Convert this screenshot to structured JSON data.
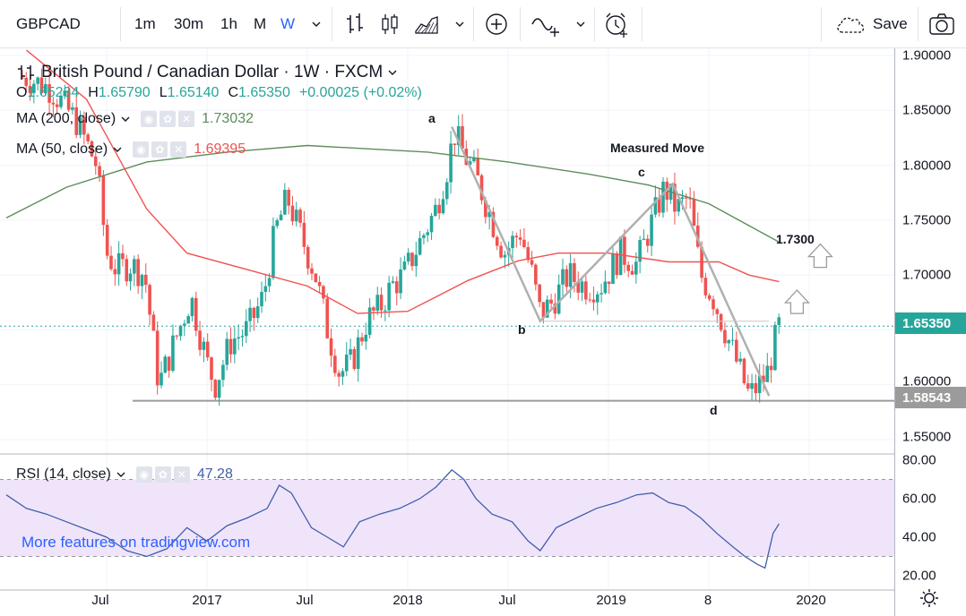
{
  "toolbar": {
    "symbol": "GBPCAD",
    "intervals": [
      "1m",
      "30m",
      "1h",
      "M",
      "W"
    ],
    "active_interval": "W",
    "save_label": "Save",
    "icons": [
      "chevron-down-icon",
      "bar-style-icon",
      "candle-style-icon",
      "area-style-icon",
      "add-indicator-icon",
      "compare-icon",
      "alert-clock-icon",
      "cloud-save-icon",
      "camera-icon"
    ]
  },
  "legend": {
    "title": "British Pound / Canadian Dollar · 1W · FXCM",
    "open_label": "O",
    "open": "1.65234",
    "high_label": "H",
    "high": "1.65790",
    "low_label": "L",
    "low": "1.65140",
    "close_label": "C",
    "close": "1.65350",
    "change": "+0.00025 (+0.02%)",
    "ma200_label": "MA (200, close)",
    "ma200_value": "1.73032",
    "ma50_label": "MA (50, close)",
    "ma50_value": "1.69395",
    "rsi_label": "RSI (14, close)",
    "rsi_value": "47.28"
  },
  "watermark": "More features on tradingview.com",
  "annotations": {
    "title": "Measured Move",
    "a": "a",
    "b": "b",
    "c": "c",
    "d": "d",
    "target": "1.7300"
  },
  "price_axis": {
    "ticks": [
      "1.90000",
      "1.85000",
      "1.80000",
      "1.75000",
      "1.70000",
      "1.60000",
      "1.55000"
    ],
    "current_price": "1.65350",
    "support_price": "1.58543"
  },
  "rsi_axis": {
    "ticks": [
      "80.00",
      "60.00",
      "40.00",
      "20.00"
    ]
  },
  "time_axis": {
    "ticks": [
      "Jul",
      "2017",
      "Jul",
      "2018",
      "Jul",
      "2019",
      "8",
      "2020"
    ]
  },
  "colors": {
    "up": "#26a69a",
    "down": "#ef5350",
    "ma200": "#5d8d5a",
    "ma50": "#ef5350",
    "rsi": "#3f5fab",
    "rsi_band": "#f0e4fb",
    "accent": "#2962ff",
    "support_label": "#9b9b9b"
  },
  "chart_data": {
    "type": "candlestick",
    "title": "British Pound / Canadian Dollar · 1W · FXCM",
    "ylim": [
      1.525,
      1.92
    ],
    "support_level": 1.58543,
    "current_price": 1.6535,
    "x_ticks": [
      "Jul",
      "2017",
      "Jul",
      "2018",
      "Jul",
      "2019",
      "8",
      "2020"
    ],
    "price_path": [
      [
        2016.1,
        1.88
      ],
      [
        2016.22,
        1.87
      ],
      [
        2016.35,
        1.84
      ],
      [
        2016.45,
        1.8
      ],
      [
        2016.5,
        1.72
      ],
      [
        2016.55,
        1.705
      ],
      [
        2016.62,
        1.71
      ],
      [
        2016.69,
        1.7
      ],
      [
        2016.76,
        1.6
      ],
      [
        2016.84,
        1.64
      ],
      [
        2016.92,
        1.68
      ],
      [
        2017.0,
        1.62
      ],
      [
        2017.04,
        1.6
      ],
      [
        2017.12,
        1.64
      ],
      [
        2017.2,
        1.65
      ],
      [
        2017.28,
        1.68
      ],
      [
        2017.34,
        1.74
      ],
      [
        2017.4,
        1.77
      ],
      [
        2017.46,
        1.74
      ],
      [
        2017.54,
        1.7
      ],
      [
        2017.6,
        1.65
      ],
      [
        2017.66,
        1.61
      ],
      [
        2017.72,
        1.62
      ],
      [
        2017.8,
        1.66
      ],
      [
        2017.86,
        1.67
      ],
      [
        2017.92,
        1.69
      ],
      [
        2017.98,
        1.7
      ],
      [
        2018.06,
        1.73
      ],
      [
        2018.14,
        1.76
      ],
      [
        2018.2,
        1.8
      ],
      [
        2018.23,
        1.83
      ],
      [
        2018.28,
        1.81
      ],
      [
        2018.34,
        1.79
      ],
      [
        2018.4,
        1.76
      ],
      [
        2018.48,
        1.72
      ],
      [
        2018.56,
        1.74
      ],
      [
        2018.62,
        1.7
      ],
      [
        2018.66,
        1.665
      ],
      [
        2018.72,
        1.675
      ],
      [
        2018.8,
        1.7
      ],
      [
        2018.88,
        1.69
      ],
      [
        2018.96,
        1.69
      ],
      [
        2019.06,
        1.72
      ],
      [
        2019.14,
        1.71
      ],
      [
        2019.22,
        1.75
      ],
      [
        2019.28,
        1.78
      ],
      [
        2019.34,
        1.76
      ],
      [
        2019.4,
        1.77
      ],
      [
        2019.46,
        1.7
      ],
      [
        2019.52,
        1.68
      ],
      [
        2019.58,
        1.65
      ],
      [
        2019.64,
        1.62
      ],
      [
        2019.7,
        1.59
      ],
      [
        2019.75,
        1.6
      ],
      [
        2019.79,
        1.61
      ],
      [
        2019.83,
        1.64
      ],
      [
        2019.85,
        1.6535
      ]
    ],
    "measured_move": [
      {
        "label": "a",
        "x": 2018.22,
        "y": 1.835
      },
      {
        "label": "b",
        "x": 2018.66,
        "y": 1.658
      },
      {
        "label": "c",
        "x": 2019.32,
        "y": 1.783
      },
      {
        "label": "d",
        "x": 2019.8,
        "y": 1.59
      }
    ],
    "target": 1.73,
    "series": [
      {
        "name": "MA (200, close)",
        "last": 1.73032,
        "path": [
          [
            2016.0,
            1.752
          ],
          [
            2016.3,
            1.78
          ],
          [
            2016.7,
            1.803
          ],
          [
            2017.1,
            1.812
          ],
          [
            2017.5,
            1.818
          ],
          [
            2017.8,
            1.815
          ],
          [
            2018.1,
            1.812
          ],
          [
            2018.5,
            1.803
          ],
          [
            2018.9,
            1.792
          ],
          [
            2019.2,
            1.782
          ],
          [
            2019.5,
            1.765
          ],
          [
            2019.7,
            1.745
          ],
          [
            2019.85,
            1.73
          ]
        ]
      },
      {
        "name": "MA (50, close)",
        "last": 1.69395,
        "path": [
          [
            2016.1,
            1.905
          ],
          [
            2016.4,
            1.86
          ],
          [
            2016.7,
            1.76
          ],
          [
            2016.9,
            1.72
          ],
          [
            2017.2,
            1.705
          ],
          [
            2017.5,
            1.69
          ],
          [
            2017.75,
            1.665
          ],
          [
            2018.0,
            1.667
          ],
          [
            2018.3,
            1.695
          ],
          [
            2018.55,
            1.713
          ],
          [
            2018.75,
            1.72
          ],
          [
            2019.0,
            1.72
          ],
          [
            2019.3,
            1.712
          ],
          [
            2019.55,
            1.712
          ],
          [
            2019.7,
            1.7
          ],
          [
            2019.85,
            1.694
          ]
        ]
      }
    ],
    "rsi": {
      "name": "RSI (14, close)",
      "last": 47.28,
      "ylim": [
        17,
        82
      ],
      "band": [
        30,
        70
      ],
      "values": [
        [
          2016.0,
          62
        ],
        [
          2016.1,
          55
        ],
        [
          2016.2,
          52
        ],
        [
          2016.3,
          48
        ],
        [
          2016.4,
          44
        ],
        [
          2016.5,
          40
        ],
        [
          2016.6,
          33
        ],
        [
          2016.7,
          30
        ],
        [
          2016.8,
          34
        ],
        [
          2016.9,
          45
        ],
        [
          2017.0,
          38
        ],
        [
          2017.1,
          46
        ],
        [
          2017.2,
          50
        ],
        [
          2017.3,
          55
        ],
        [
          2017.36,
          67
        ],
        [
          2017.42,
          63
        ],
        [
          2017.52,
          45
        ],
        [
          2017.6,
          40
        ],
        [
          2017.68,
          35
        ],
        [
          2017.76,
          48
        ],
        [
          2017.86,
          52
        ],
        [
          2017.96,
          55
        ],
        [
          2018.06,
          60
        ],
        [
          2018.14,
          66
        ],
        [
          2018.22,
          75
        ],
        [
          2018.28,
          70
        ],
        [
          2018.34,
          60
        ],
        [
          2018.42,
          52
        ],
        [
          2018.52,
          48
        ],
        [
          2018.6,
          38
        ],
        [
          2018.66,
          33
        ],
        [
          2018.74,
          45
        ],
        [
          2018.84,
          50
        ],
        [
          2018.94,
          55
        ],
        [
          2019.04,
          58
        ],
        [
          2019.14,
          62
        ],
        [
          2019.22,
          63
        ],
        [
          2019.3,
          58
        ],
        [
          2019.38,
          56
        ],
        [
          2019.46,
          50
        ],
        [
          2019.54,
          42
        ],
        [
          2019.62,
          35
        ],
        [
          2019.68,
          30
        ],
        [
          2019.74,
          26
        ],
        [
          2019.78,
          24
        ],
        [
          2019.82,
          42
        ],
        [
          2019.85,
          47
        ]
      ]
    }
  }
}
